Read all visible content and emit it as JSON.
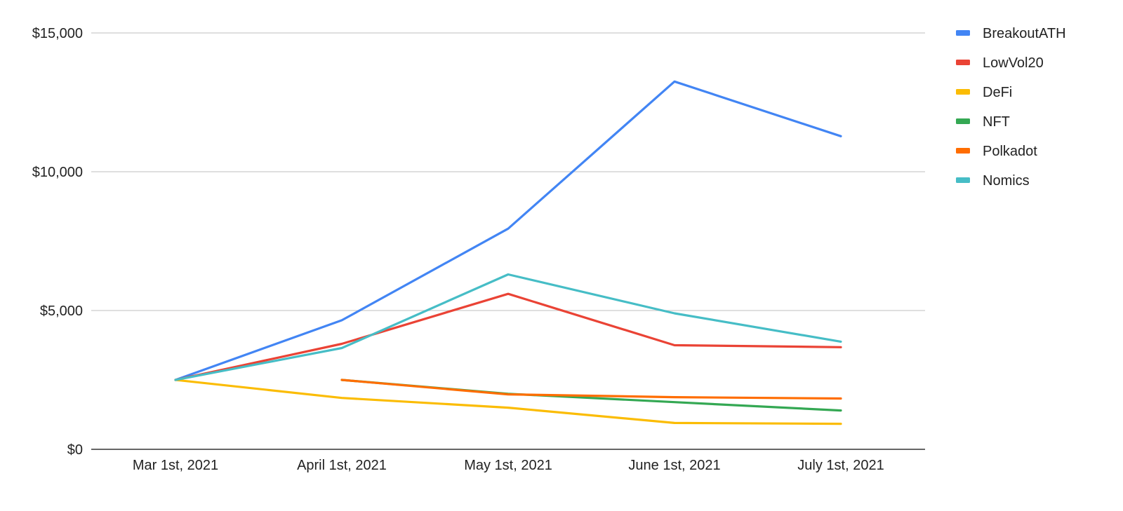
{
  "chart_data": {
    "type": "line",
    "title": "",
    "xlabel": "",
    "ylabel": "",
    "categories": [
      "Mar 1st, 2021",
      "April 1st, 2021",
      "May 1st, 2021",
      "June 1st, 2021",
      "July 1st, 2021"
    ],
    "ylim": [
      0,
      15000
    ],
    "yticks": [
      0,
      5000,
      10000,
      15000
    ],
    "ytick_labels": [
      "$0",
      "$5,000",
      "$10,000",
      "$15,000"
    ],
    "grid": true,
    "legend_position": "right",
    "series": [
      {
        "name": "BreakoutATH",
        "color": "#4285f4",
        "values": [
          2500,
          4650,
          7950,
          13250,
          11280
        ]
      },
      {
        "name": "LowVol20",
        "color": "#ea4335",
        "values": [
          2500,
          3800,
          5600,
          3750,
          3680
        ]
      },
      {
        "name": "DeFi",
        "color": "#fbbc04",
        "values": [
          2500,
          1850,
          1500,
          950,
          920
        ]
      },
      {
        "name": "NFT",
        "color": "#34a853",
        "values": [
          null,
          2500,
          2000,
          1700,
          1400
        ]
      },
      {
        "name": "Polkadot",
        "color": "#ff6d01",
        "values": [
          null,
          2500,
          1980,
          1880,
          1830
        ]
      },
      {
        "name": "Nomics",
        "color": "#46bdc6",
        "values": [
          2500,
          3650,
          6300,
          4900,
          3880
        ]
      }
    ]
  }
}
